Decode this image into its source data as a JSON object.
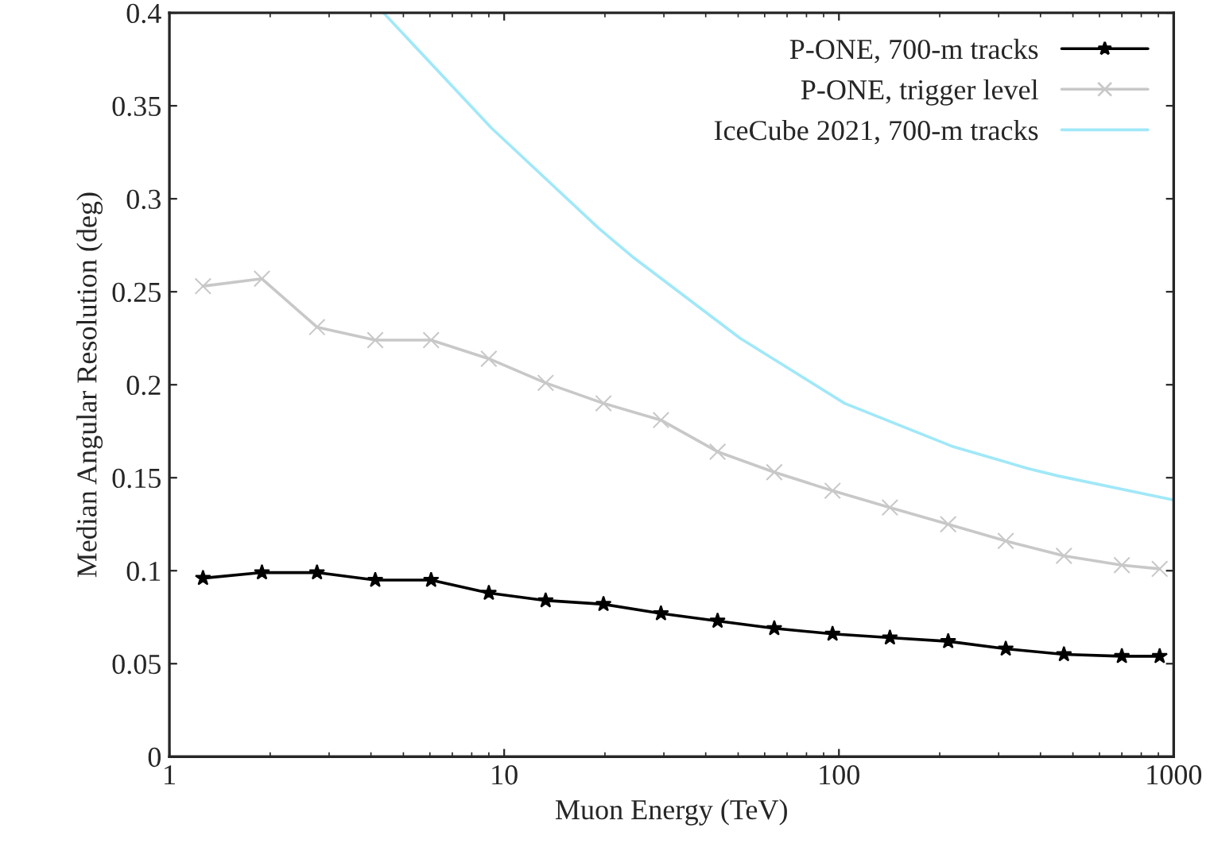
{
  "chart_data": {
    "type": "line",
    "xlabel": "Muon Energy (TeV)",
    "ylabel": "Median Angular Resolution (deg)",
    "log": "x",
    "xlim": [
      1,
      1000
    ],
    "xticks": [
      1,
      10,
      100,
      1000
    ],
    "ylim": [
      0,
      0.4
    ],
    "yticks": [
      0,
      0.05,
      0.1,
      0.15,
      0.2,
      0.25,
      0.3,
      0.35,
      0.4
    ],
    "grid": false,
    "legend": "top right",
    "series": [
      {
        "name": "P-ONE, 700-m tracks",
        "color": "#000000",
        "marker": "star",
        "x": [
          1.26,
          1.89,
          2.76,
          4.12,
          6.05,
          9.0,
          13.3,
          19.8,
          29.4,
          43.4,
          64.1,
          95.7,
          142,
          212,
          315,
          470,
          700,
          908
        ],
        "values": [
          0.096,
          0.099,
          0.099,
          0.095,
          0.095,
          0.088,
          0.084,
          0.082,
          0.077,
          0.073,
          0.069,
          0.066,
          0.064,
          0.062,
          0.058,
          0.055,
          0.054,
          0.054
        ]
      },
      {
        "name": "P-ONE, trigger level",
        "color": "#c8c8c8",
        "marker": "cross",
        "x": [
          1.26,
          1.89,
          2.76,
          4.12,
          6.05,
          9.0,
          13.3,
          19.8,
          29.4,
          43.4,
          64.1,
          95.7,
          142,
          212,
          315,
          470,
          700,
          908
        ],
        "values": [
          0.253,
          0.257,
          0.231,
          0.224,
          0.224,
          0.214,
          0.201,
          0.19,
          0.181,
          0.164,
          0.153,
          0.143,
          0.134,
          0.125,
          0.116,
          0.108,
          0.103,
          0.101
        ]
      },
      {
        "name": "IceCube 2021, 700-m tracks",
        "color": "#a0e8f8",
        "marker": "none",
        "x": [
          4.36,
          9.17,
          19.2,
          24.5,
          50.7,
          104,
          217,
          366,
          451,
          1000
        ],
        "values": [
          0.4,
          0.338,
          0.284,
          0.268,
          0.225,
          0.19,
          0.167,
          0.155,
          0.151,
          0.138
        ]
      }
    ]
  }
}
